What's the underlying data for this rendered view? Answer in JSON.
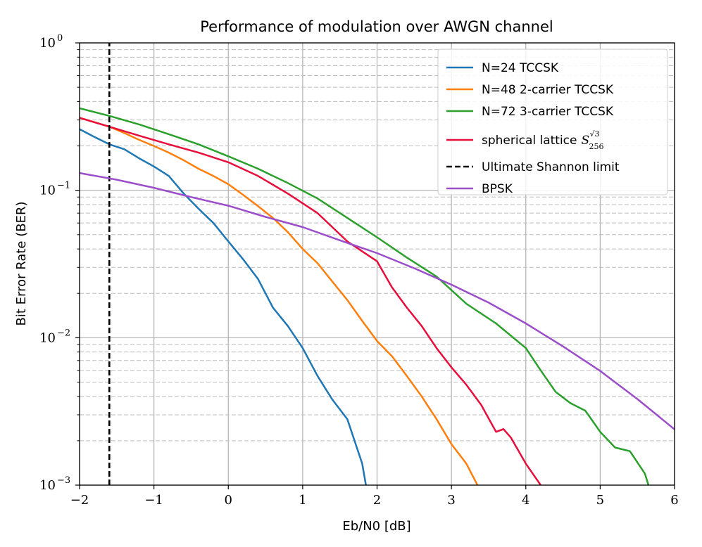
{
  "chart_data": {
    "type": "line",
    "title": "Performance of modulation over AWGN channel",
    "xlabel": "Eb/N0 [dB]",
    "ylabel": "Bit Error Rate (BER)",
    "yscale": "log",
    "xlim": [
      -2,
      6
    ],
    "ylim": [
      0.001,
      1
    ],
    "grid": true,
    "legend_position": "top-right",
    "x_ticks": [
      {
        "value": -2,
        "label": "−2"
      },
      {
        "value": -1,
        "label": "−1"
      },
      {
        "value": 0,
        "label": "0"
      },
      {
        "value": 1,
        "label": "1"
      },
      {
        "value": 2,
        "label": "2"
      },
      {
        "value": 3,
        "label": "3"
      },
      {
        "value": 4,
        "label": "4"
      },
      {
        "value": 5,
        "label": "5"
      },
      {
        "value": 6,
        "label": "6"
      }
    ],
    "y_ticks": [
      {
        "value": 1,
        "base": "10",
        "exp": "0"
      },
      {
        "value": 0.1,
        "base": "10",
        "exp": "−1"
      },
      {
        "value": 0.01,
        "base": "10",
        "exp": "−2"
      },
      {
        "value": 0.001,
        "base": "10",
        "exp": "−3"
      }
    ],
    "series": [
      {
        "name": "N=24 TCCSK",
        "color": "#1f77b4",
        "style": "solid",
        "x": [
          -2,
          -1.8,
          -1.6,
          -1.4,
          -1.2,
          -1.0,
          -0.8,
          -0.6,
          -0.4,
          -0.2,
          0.0,
          0.2,
          0.4,
          0.6,
          0.8,
          1.0,
          1.2,
          1.4,
          1.6,
          1.8,
          1.85
        ],
        "y": [
          0.26,
          0.23,
          0.205,
          0.19,
          0.165,
          0.145,
          0.125,
          0.095,
          0.075,
          0.06,
          0.045,
          0.034,
          0.025,
          0.016,
          0.012,
          0.0085,
          0.0055,
          0.0038,
          0.0028,
          0.0014,
          0.001
        ]
      },
      {
        "name": "N=48 2-carrier TCCSK",
        "color": "#ff7f0e",
        "style": "solid",
        "x": [
          -2,
          -1.8,
          -1.6,
          -1.4,
          -1.2,
          -1.0,
          -0.8,
          -0.6,
          -0.4,
          -0.2,
          0.0,
          0.2,
          0.4,
          0.6,
          0.8,
          1.0,
          1.2,
          1.4,
          1.6,
          1.8,
          2.0,
          2.2,
          2.4,
          2.6,
          2.8,
          3.0,
          3.2,
          3.35
        ],
        "y": [
          0.31,
          0.29,
          0.27,
          0.245,
          0.22,
          0.2,
          0.18,
          0.16,
          0.14,
          0.125,
          0.11,
          0.093,
          0.078,
          0.065,
          0.052,
          0.04,
          0.032,
          0.024,
          0.018,
          0.013,
          0.0095,
          0.0075,
          0.0055,
          0.004,
          0.0028,
          0.0019,
          0.0014,
          0.001
        ]
      },
      {
        "name": "N=72 3-carrier TCCSK",
        "color": "#2ca02c",
        "style": "solid",
        "x": [
          -2,
          -1.6,
          -1.2,
          -0.8,
          -0.4,
          0.0,
          0.4,
          0.8,
          1.2,
          1.6,
          2.0,
          2.4,
          2.8,
          3.2,
          3.6,
          4.0,
          4.2,
          4.4,
          4.6,
          4.8,
          5.0,
          5.2,
          5.4,
          5.6,
          5.65
        ],
        "y": [
          0.36,
          0.32,
          0.28,
          0.24,
          0.205,
          0.17,
          0.14,
          0.112,
          0.088,
          0.065,
          0.048,
          0.035,
          0.026,
          0.017,
          0.0125,
          0.0085,
          0.006,
          0.0043,
          0.0036,
          0.0032,
          0.0023,
          0.0018,
          0.0017,
          0.0012,
          0.001
        ]
      },
      {
        "name": "spherical lattice",
        "color": "#e60f3c",
        "style": "solid",
        "math": {
          "symbol": "S",
          "sub": "256",
          "sup": "√3"
        },
        "x": [
          -2,
          -1.6,
          -1.2,
          -0.8,
          -0.4,
          0.0,
          0.4,
          0.8,
          1.2,
          1.6,
          2.0,
          2.2,
          2.4,
          2.6,
          2.8,
          3.0,
          3.2,
          3.4,
          3.6,
          3.7,
          3.8,
          4.0,
          4.2
        ],
        "y": [
          0.31,
          0.27,
          0.235,
          0.205,
          0.18,
          0.155,
          0.125,
          0.095,
          0.07,
          0.045,
          0.033,
          0.022,
          0.016,
          0.012,
          0.0085,
          0.0063,
          0.0048,
          0.0035,
          0.0023,
          0.0024,
          0.0021,
          0.0014,
          0.001
        ]
      },
      {
        "name": "Ultimate Shannon limit",
        "color": "#000000",
        "style": "dashed",
        "x": [
          -1.6,
          -1.6
        ],
        "y": [
          0.001,
          1
        ]
      },
      {
        "name": "BPSK",
        "color": "#9b4dca",
        "style": "solid",
        "x": [
          -2,
          -1.5,
          -1,
          -0.5,
          0,
          0.5,
          1,
          1.5,
          2,
          2.5,
          3,
          3.5,
          4,
          4.5,
          5,
          5.5,
          6
        ],
        "y": [
          0.131,
          0.118,
          0.104,
          0.09,
          0.0786,
          0.066,
          0.0563,
          0.0458,
          0.0375,
          0.0296,
          0.0229,
          0.0173,
          0.0125,
          0.00873,
          0.00595,
          0.00384,
          0.00239
        ]
      }
    ]
  }
}
